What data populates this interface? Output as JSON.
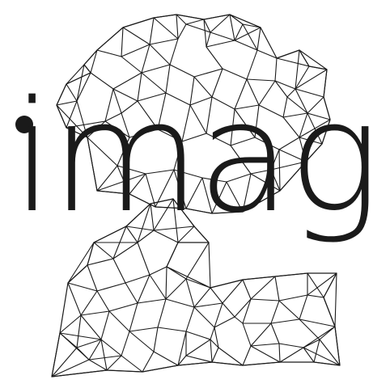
{
  "logo": {
    "wordmark": "imag",
    "ink_color": "#1a1a1a",
    "background_color": "#ffffff"
  }
}
